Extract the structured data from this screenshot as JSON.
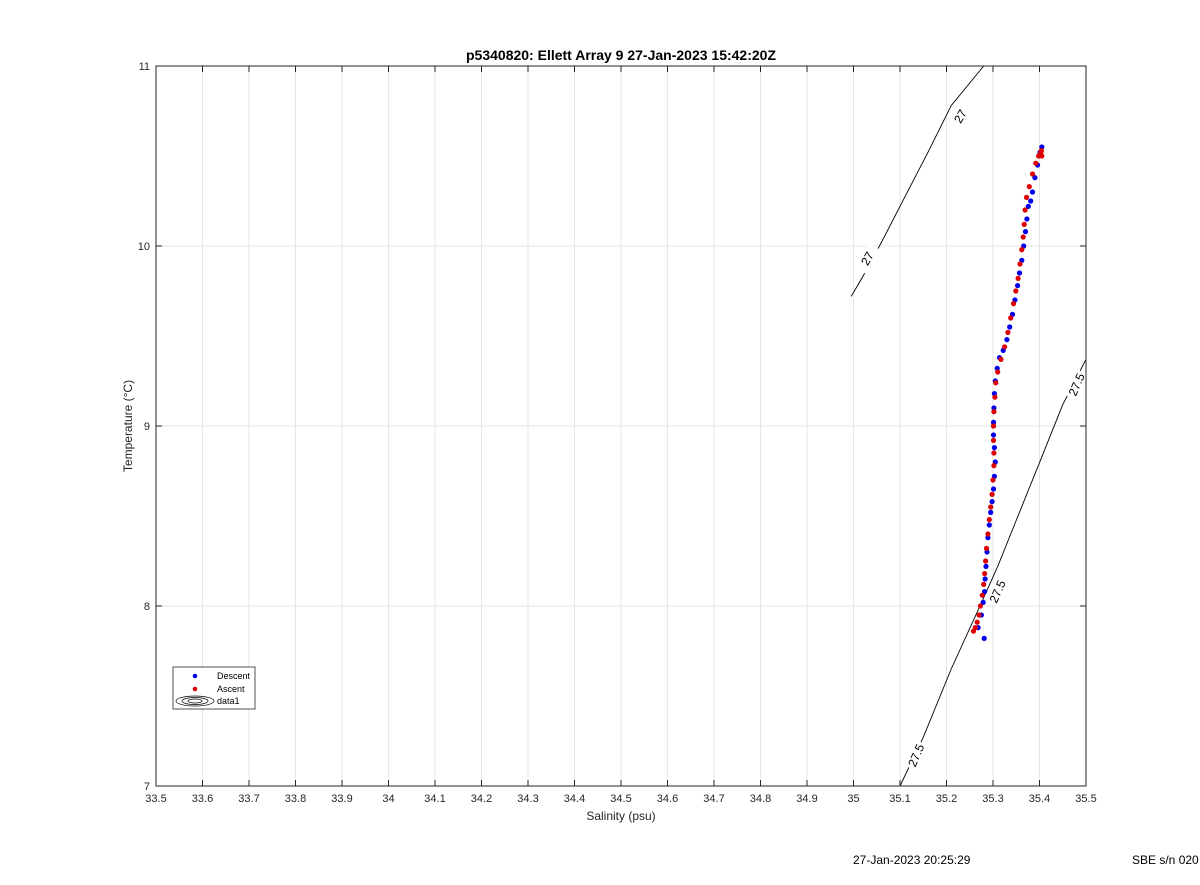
{
  "chart_data": {
    "type": "scatter",
    "title": "p5340820: Ellett Array 9 27-Jan-2023 15:42:20Z",
    "xlabel": "Salinity (psu)",
    "ylabel": "Temperature (°C)",
    "xlim": [
      33.5,
      35.5
    ],
    "ylim": [
      7,
      11
    ],
    "grid": true,
    "x_ticks": [
      "33.5",
      "33.6",
      "33.7",
      "33.8",
      "33.9",
      "34",
      "34.1",
      "34.2",
      "34.3",
      "34.4",
      "34.5",
      "34.6",
      "34.7",
      "34.8",
      "34.9",
      "35",
      "35.1",
      "35.2",
      "35.3",
      "35.4",
      "35.5"
    ],
    "y_ticks": [
      "7",
      "8",
      "9",
      "10",
      "11"
    ],
    "legend_position": "lower-left",
    "legend": [
      "Descent",
      "Ascent",
      "data1"
    ],
    "series": [
      {
        "name": "Descent",
        "color": "#0000ee",
        "points": [
          [
            35.281,
            7.82
          ],
          [
            35.268,
            7.88
          ],
          [
            35.275,
            7.95
          ],
          [
            35.279,
            8.02
          ],
          [
            35.282,
            8.08
          ],
          [
            35.283,
            8.15
          ],
          [
            35.285,
            8.22
          ],
          [
            35.287,
            8.3
          ],
          [
            35.289,
            8.38
          ],
          [
            35.292,
            8.45
          ],
          [
            35.295,
            8.52
          ],
          [
            35.298,
            8.58
          ],
          [
            35.301,
            8.65
          ],
          [
            35.303,
            8.72
          ],
          [
            35.305,
            8.8
          ],
          [
            35.303,
            8.88
          ],
          [
            35.301,
            8.95
          ],
          [
            35.301,
            9.02
          ],
          [
            35.302,
            9.1
          ],
          [
            35.303,
            9.18
          ],
          [
            35.305,
            9.25
          ],
          [
            35.309,
            9.32
          ],
          [
            35.314,
            9.38
          ],
          [
            35.322,
            9.42
          ],
          [
            35.33,
            9.48
          ],
          [
            35.336,
            9.55
          ],
          [
            35.342,
            9.62
          ],
          [
            35.347,
            9.7
          ],
          [
            35.353,
            9.78
          ],
          [
            35.357,
            9.85
          ],
          [
            35.362,
            9.92
          ],
          [
            35.366,
            10.0
          ],
          [
            35.37,
            10.08
          ],
          [
            35.373,
            10.15
          ],
          [
            35.376,
            10.22
          ],
          [
            35.381,
            10.25
          ],
          [
            35.385,
            10.3
          ],
          [
            35.39,
            10.38
          ],
          [
            35.396,
            10.45
          ],
          [
            35.401,
            10.52
          ],
          [
            35.405,
            10.55
          ]
        ]
      },
      {
        "name": "Ascent",
        "color": "#dd0000",
        "points": [
          [
            35.258,
            7.86
          ],
          [
            35.262,
            7.88
          ],
          [
            35.266,
            7.91
          ],
          [
            35.27,
            7.95
          ],
          [
            35.273,
            8.0
          ],
          [
            35.277,
            8.06
          ],
          [
            35.28,
            8.12
          ],
          [
            35.282,
            8.18
          ],
          [
            35.284,
            8.25
          ],
          [
            35.286,
            8.32
          ],
          [
            35.289,
            8.4
          ],
          [
            35.292,
            8.48
          ],
          [
            35.295,
            8.55
          ],
          [
            35.298,
            8.62
          ],
          [
            35.3,
            8.7
          ],
          [
            35.302,
            8.78
          ],
          [
            35.302,
            8.85
          ],
          [
            35.301,
            8.92
          ],
          [
            35.301,
            9.0
          ],
          [
            35.302,
            9.08
          ],
          [
            35.304,
            9.16
          ],
          [
            35.306,
            9.24
          ],
          [
            35.31,
            9.3
          ],
          [
            35.317,
            9.37
          ],
          [
            35.325,
            9.44
          ],
          [
            35.332,
            9.52
          ],
          [
            35.338,
            9.6
          ],
          [
            35.344,
            9.68
          ],
          [
            35.349,
            9.75
          ],
          [
            35.354,
            9.82
          ],
          [
            35.358,
            9.9
          ],
          [
            35.362,
            9.98
          ],
          [
            35.365,
            10.05
          ],
          [
            35.367,
            10.12
          ],
          [
            35.369,
            10.2
          ],
          [
            35.372,
            10.27
          ],
          [
            35.378,
            10.33
          ],
          [
            35.385,
            10.4
          ],
          [
            35.392,
            10.46
          ],
          [
            35.398,
            10.5
          ],
          [
            35.403,
            10.52
          ],
          [
            35.405,
            10.5
          ],
          [
            35.404,
            10.53
          ]
        ]
      }
    ],
    "contours": [
      {
        "label": "27",
        "points": [
          [
            34.995,
            9.72
          ],
          [
            35.02,
            9.83
          ],
          [
            35.06,
            10.02
          ],
          [
            35.11,
            10.27
          ],
          [
            35.16,
            10.52
          ],
          [
            35.21,
            10.78
          ],
          [
            35.28,
            11.0
          ]
        ],
        "label_positions": [
          [
            35.03,
            9.93
          ],
          [
            35.23,
            10.72
          ]
        ]
      },
      {
        "label": "27.5",
        "points": [
          [
            35.1,
            7.0
          ],
          [
            35.15,
            7.27
          ],
          [
            35.21,
            7.65
          ],
          [
            35.265,
            7.96
          ],
          [
            35.31,
            8.22
          ],
          [
            35.36,
            8.54
          ],
          [
            35.41,
            8.86
          ],
          [
            35.45,
            9.12
          ],
          [
            35.5,
            9.37
          ]
        ],
        "label_positions": [
          [
            35.135,
            7.17
          ],
          [
            35.31,
            8.08
          ],
          [
            35.48,
            9.23
          ]
        ]
      }
    ]
  },
  "footer": {
    "timestamp": "27-Jan-2023 20:25:29",
    "serial": "SBE s/n 020"
  },
  "colors": {
    "axis": "#262626",
    "grid": "#e6e6e6",
    "contour": "#000000"
  }
}
